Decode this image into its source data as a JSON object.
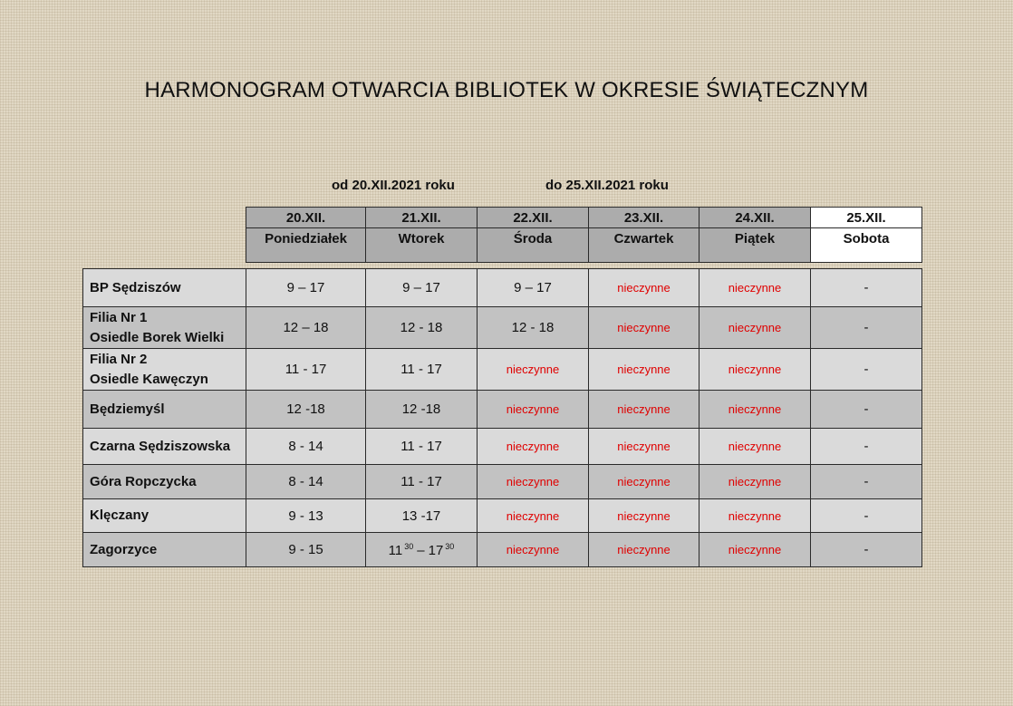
{
  "title": "HARMONOGRAM OTWARCIA BIBLIOTEK W OKRESIE ŚWIĄTECZNYM",
  "range": {
    "from": "od 20.XII.2021 roku",
    "to": "do 25.XII.2021 roku"
  },
  "days": [
    {
      "date": "20.XII.",
      "day": "Poniedziałek"
    },
    {
      "date": "21.XII.",
      "day": "Wtorek"
    },
    {
      "date": "22.XII.",
      "day": "Środa"
    },
    {
      "date": "23.XII.",
      "day": "Czwartek"
    },
    {
      "date": "24.XII.",
      "day": "Piątek"
    },
    {
      "date": "25.XII.",
      "day": "Sobota"
    }
  ],
  "rows": [
    {
      "name1": "BP Sędziszów",
      "name2": "",
      "c": [
        "9 – 17",
        "9 – 17",
        "9 – 17",
        "nieczynne",
        "nieczynne",
        "-"
      ]
    },
    {
      "name1": "Filia Nr 1",
      "name2": "Osiedle Borek Wielki",
      "c": [
        "12 – 18",
        "12 - 18",
        "12 - 18",
        "nieczynne",
        "nieczynne",
        "-"
      ]
    },
    {
      "name1": "Filia Nr 2",
      "name2": "Osiedle Kawęczyn",
      "c": [
        "11 - 17",
        "11 - 17",
        "nieczynne",
        "nieczynne",
        "nieczynne",
        "-"
      ]
    },
    {
      "name1": "Będziemyśl",
      "name2": "",
      "c": [
        "12 -18",
        "12 -18",
        "nieczynne",
        "nieczynne",
        "nieczynne",
        "-"
      ]
    },
    {
      "name1": "Czarna Sędziszowska",
      "name2": "",
      "c": [
        "8 - 14",
        "11 - 17",
        "nieczynne",
        "nieczynne",
        "nieczynne",
        "-"
      ]
    },
    {
      "name1": "Góra Ropczycka",
      "name2": "",
      "c": [
        "8 - 14",
        "11 - 17",
        "nieczynne",
        "nieczynne",
        "nieczynne",
        "-"
      ]
    },
    {
      "name1": "Klęczany",
      "name2": "",
      "c": [
        "9 - 13",
        "13 -17",
        "nieczynne",
        "nieczynne",
        "nieczynne",
        "-"
      ]
    },
    {
      "name1": "Zagorzyce",
      "name2": "",
      "c": [
        "9 - 15",
        "",
        "nieczynne",
        "nieczynne",
        "nieczynne",
        "-"
      ]
    }
  ],
  "zagorzyce_tue": {
    "start_h": "11",
    "start_m": "30",
    "dash": "–",
    "end_h": "17",
    "end_m": "30"
  }
}
